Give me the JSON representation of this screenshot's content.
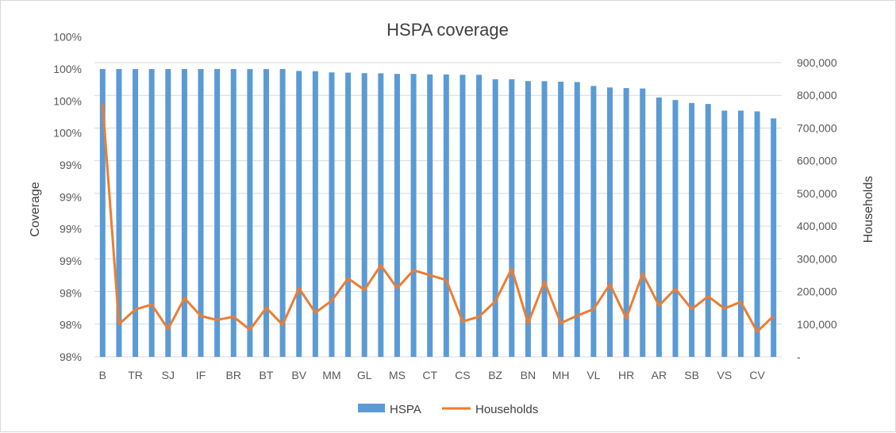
{
  "chart_data": {
    "type": "bar",
    "title": "HSPA coverage",
    "xlabel": "",
    "ylabel": "Coverage",
    "y2label": "Households",
    "ylim": [
      0.9775,
      1.0005
    ],
    "y2lim": [
      0,
      900000
    ],
    "y_tick_values": [
      0.9775,
      0.98,
      0.9825,
      0.985,
      0.9875,
      0.99,
      0.9925,
      0.995,
      0.9975,
      1.0,
      1.0025
    ],
    "y_tick_labels": [
      "98%",
      "98%",
      "98%",
      "99%",
      "99%",
      "99%",
      "99%",
      "100%",
      "100%",
      "100%",
      "100%"
    ],
    "y2_tick_values": [
      0,
      100000,
      200000,
      300000,
      400000,
      500000,
      600000,
      700000,
      800000,
      900000
    ],
    "y2_tick_labels": [
      "-",
      "100,000",
      "200,000",
      "300,000",
      "400,000",
      "500,000",
      "600,000",
      "700,000",
      "800,000",
      "900,000"
    ],
    "categories": [
      "B",
      "",
      "TR",
      "",
      "SJ",
      "",
      "IF",
      "",
      "BR",
      "",
      "BT",
      "",
      "BV",
      "",
      "MM",
      "",
      "GL",
      "",
      "MS",
      "",
      "CT",
      "",
      "CS",
      "",
      "BZ",
      "",
      "BN",
      "",
      "MH",
      "",
      "VL",
      "",
      "HR",
      "",
      "AR",
      "",
      "SB",
      "",
      "VS",
      "",
      "CV",
      ""
    ],
    "grid": true,
    "legend_position": "bottom",
    "series": [
      {
        "name": "HSPA",
        "type": "bar",
        "axis": "left",
        "color": "#5b9bd5",
        "values": [
          1.0,
          1.0,
          1.0,
          1.0,
          1.0,
          1.0,
          1.0,
          1.0,
          1.0,
          1.0,
          1.0,
          1.0,
          0.99985,
          0.99983,
          0.99974,
          0.99972,
          0.99968,
          0.99967,
          0.99962,
          0.99962,
          0.99958,
          0.99958,
          0.99955,
          0.99955,
          0.9992,
          0.9992,
          0.99906,
          0.99905,
          0.99901,
          0.99898,
          0.99868,
          0.99856,
          0.99851,
          0.99848,
          0.99778,
          0.99758,
          0.99735,
          0.99727,
          0.99675,
          0.99675,
          0.99669,
          0.99614
        ]
      },
      {
        "name": "Households",
        "type": "line",
        "axis": "right",
        "color": "#ed7d31",
        "values": [
          775000,
          100000,
          145000,
          160000,
          85000,
          180000,
          125000,
          113000,
          123000,
          83000,
          150000,
          98000,
          210000,
          135000,
          172000,
          240000,
          205000,
          280000,
          210000,
          265000,
          250000,
          235000,
          108000,
          123000,
          170000,
          270000,
          103000,
          230000,
          103000,
          126000,
          146000,
          222000,
          118000,
          255000,
          157000,
          208000,
          146000,
          185000,
          148000,
          168000,
          77000,
          125000
        ]
      }
    ]
  }
}
